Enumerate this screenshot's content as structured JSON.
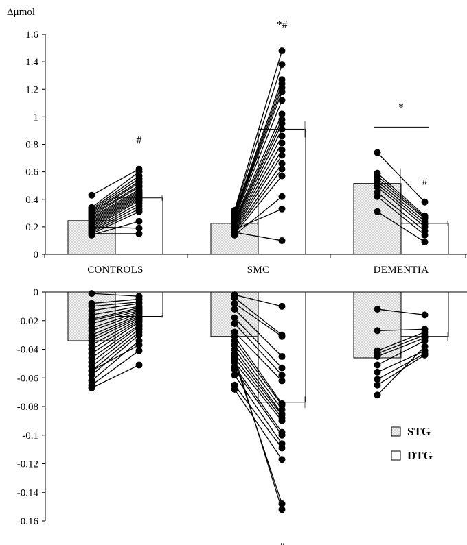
{
  "chart_data": {
    "type": "bar",
    "ylabel": "Δμmol",
    "categories": [
      "CONTROLS",
      "SMC",
      "DEMENTIA"
    ],
    "series_labels": [
      "STG",
      "DTG"
    ],
    "legend_position": "bottom-right",
    "top_panel": {
      "ylim": [
        0,
        1.6
      ],
      "yticks": [
        "0",
        "0.2",
        "0.4",
        "0.6",
        "0.8",
        "1",
        "1.2",
        "1.4",
        "1.6"
      ],
      "bars": {
        "STG": [
          0.245,
          0.225,
          0.515
        ],
        "DTG": [
          0.41,
          0.91,
          0.225
        ]
      },
      "error": {
        "STG": [
          0.01,
          0.01,
          0.11
        ],
        "DTG": [
          0.02,
          0.06,
          0.02
        ]
      },
      "subjects": [
        [
          [
            0.43,
            0.62
          ],
          [
            0.34,
            0.6
          ],
          [
            0.33,
            0.57
          ],
          [
            0.32,
            0.55
          ],
          [
            0.31,
            0.53
          ],
          [
            0.3,
            0.52
          ],
          [
            0.29,
            0.5
          ],
          [
            0.28,
            0.49
          ],
          [
            0.27,
            0.47
          ],
          [
            0.26,
            0.46
          ],
          [
            0.25,
            0.45
          ],
          [
            0.24,
            0.44
          ],
          [
            0.23,
            0.43
          ],
          [
            0.22,
            0.42
          ],
          [
            0.21,
            0.41
          ],
          [
            0.2,
            0.4
          ],
          [
            0.19,
            0.39
          ],
          [
            0.18,
            0.37
          ],
          [
            0.17,
            0.35
          ],
          [
            0.16,
            0.33
          ],
          [
            0.15,
            0.31
          ],
          [
            0.14,
            0.24
          ],
          [
            0.2,
            0.19
          ],
          [
            0.15,
            0.15
          ]
        ],
        [
          [
            0.32,
            1.48
          ],
          [
            0.31,
            1.38
          ],
          [
            0.3,
            1.27
          ],
          [
            0.29,
            1.24
          ],
          [
            0.28,
            1.21
          ],
          [
            0.27,
            1.18
          ],
          [
            0.26,
            1.12
          ],
          [
            0.25,
            1.02
          ],
          [
            0.24,
            0.98
          ],
          [
            0.23,
            0.95
          ],
          [
            0.22,
            0.91
          ],
          [
            0.21,
            0.86
          ],
          [
            0.2,
            0.81
          ],
          [
            0.19,
            0.76
          ],
          [
            0.18,
            0.72
          ],
          [
            0.17,
            0.66
          ],
          [
            0.16,
            0.62
          ],
          [
            0.15,
            0.57
          ],
          [
            0.14,
            0.42
          ],
          [
            0.18,
            0.33
          ],
          [
            0.16,
            0.1
          ]
        ],
        [
          [
            0.74,
            0.38
          ],
          [
            0.59,
            0.28
          ],
          [
            0.57,
            0.27
          ],
          [
            0.55,
            0.26
          ],
          [
            0.53,
            0.24
          ],
          [
            0.51,
            0.22
          ],
          [
            0.49,
            0.2
          ],
          [
            0.45,
            0.17
          ],
          [
            0.42,
            0.14
          ],
          [
            0.31,
            0.09
          ]
        ]
      ],
      "annotations": [
        {
          "text": "#",
          "group": 0,
          "bar": "DTG",
          "value": 0.83
        },
        {
          "text": "*#",
          "group": 1,
          "bar": "DTG",
          "value": 1.67
        },
        {
          "text": "*",
          "group": 2,
          "bar": "center",
          "value": 1.07
        },
        {
          "text": "#",
          "group": 2,
          "bar": "DTG",
          "value": 0.53
        }
      ],
      "bracket": {
        "group": 2,
        "value": 0.925
      }
    },
    "bottom_panel": {
      "ylim": [
        -0.16,
        0
      ],
      "yticks": [
        "0",
        "-0.02",
        "-0.04",
        "-0.06",
        "-0.08",
        "-0.1",
        "-0.12",
        "-0.14",
        "-0.16"
      ],
      "bars": {
        "STG": [
          -0.034,
          -0.031,
          -0.046
        ],
        "DTG": [
          -0.017,
          -0.077,
          -0.031
        ]
      },
      "error": {
        "STG": [
          0.004,
          0.004,
          0.005
        ],
        "DTG": [
          0.001,
          0.004,
          0.003
        ]
      },
      "subjects": [
        [
          [
            -0.001,
            -0.003
          ],
          [
            -0.008,
            -0.005
          ],
          [
            -0.01,
            -0.007
          ],
          [
            -0.013,
            -0.008
          ],
          [
            -0.016,
            -0.01
          ],
          [
            -0.019,
            -0.011
          ],
          [
            -0.02,
            -0.012
          ],
          [
            -0.022,
            -0.013
          ],
          [
            -0.025,
            -0.014
          ],
          [
            -0.027,
            -0.015
          ],
          [
            -0.03,
            -0.016
          ],
          [
            -0.032,
            -0.017
          ],
          [
            -0.034,
            -0.018
          ],
          [
            -0.037,
            -0.019
          ],
          [
            -0.04,
            -0.02
          ],
          [
            -0.043,
            -0.021
          ],
          [
            -0.046,
            -0.023
          ],
          [
            -0.049,
            -0.024
          ],
          [
            -0.052,
            -0.026
          ],
          [
            -0.055,
            -0.028
          ],
          [
            -0.058,
            -0.03
          ],
          [
            -0.062,
            -0.034
          ],
          [
            -0.065,
            -0.041
          ],
          [
            -0.067,
            -0.051
          ],
          [
            -0.055,
            -0.037
          ]
        ],
        [
          [
            -0.002,
            -0.01
          ],
          [
            -0.004,
            -0.03
          ],
          [
            -0.008,
            -0.031
          ],
          [
            -0.012,
            -0.045
          ],
          [
            -0.018,
            -0.053
          ],
          [
            -0.022,
            -0.058
          ],
          [
            -0.028,
            -0.062
          ],
          [
            -0.031,
            -0.078
          ],
          [
            -0.034,
            -0.079
          ],
          [
            -0.037,
            -0.082
          ],
          [
            -0.04,
            -0.085
          ],
          [
            -0.043,
            -0.086
          ],
          [
            -0.046,
            -0.088
          ],
          [
            -0.049,
            -0.09
          ],
          [
            -0.052,
            -0.098
          ],
          [
            -0.054,
            -0.1
          ],
          [
            -0.058,
            -0.106
          ],
          [
            -0.065,
            -0.109
          ],
          [
            -0.068,
            -0.117
          ],
          [
            -0.048,
            -0.148
          ],
          [
            -0.045,
            -0.152
          ]
        ],
        [
          [
            -0.012,
            -0.016
          ],
          [
            -0.027,
            -0.026
          ],
          [
            -0.041,
            -0.028
          ],
          [
            -0.043,
            -0.03
          ],
          [
            -0.045,
            -0.032
          ],
          [
            -0.051,
            -0.034
          ],
          [
            -0.056,
            -0.041
          ],
          [
            -0.061,
            -0.043
          ],
          [
            -0.065,
            -0.044
          ],
          [
            -0.072,
            -0.038
          ]
        ]
      ],
      "annotations": [
        {
          "text": "#",
          "group": 1,
          "bar": "DTG",
          "value": -0.178
        }
      ]
    }
  }
}
